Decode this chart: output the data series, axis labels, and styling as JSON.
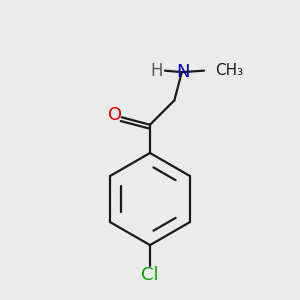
{
  "background_color": "#ebebeb",
  "bond_color": "#1a1a1a",
  "bond_width": 1.6,
  "atom_colors": {
    "O": "#dd0000",
    "N": "#0000cc",
    "Cl": "#00aa00",
    "H": "#555566"
  },
  "font_size": 12,
  "figsize": [
    3.0,
    3.0
  ],
  "dpi": 100
}
